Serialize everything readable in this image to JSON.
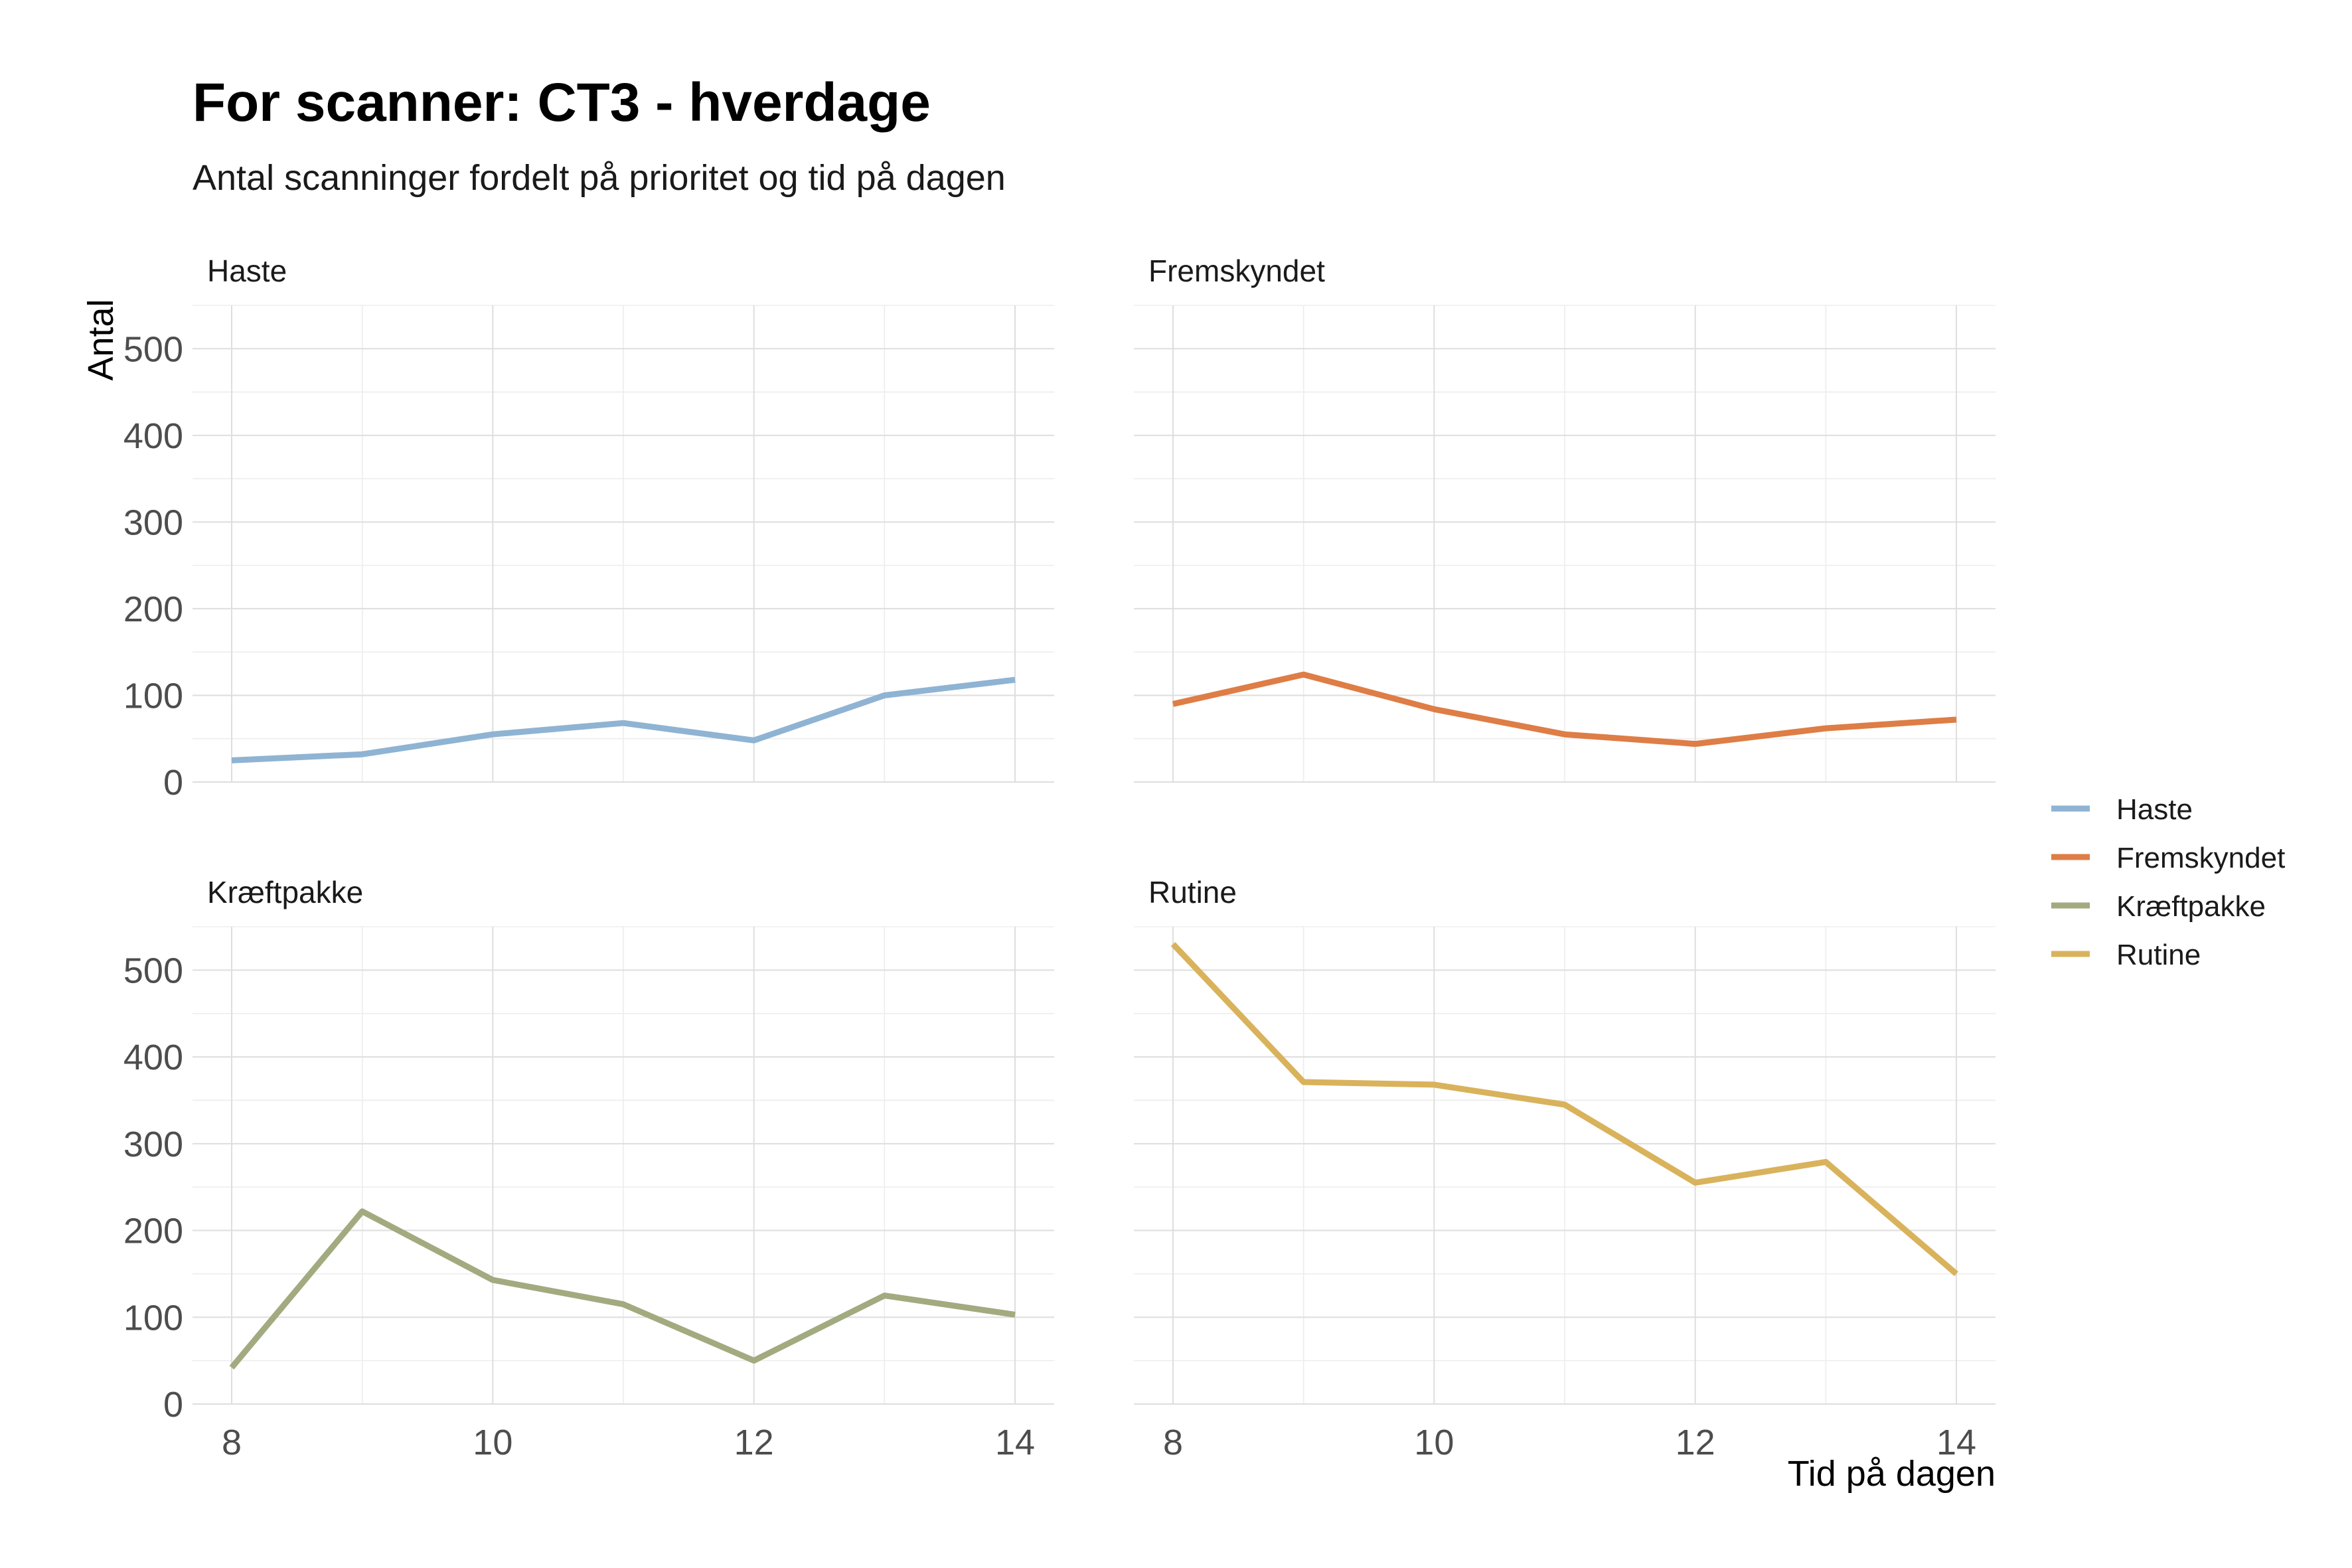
{
  "chart_data": {
    "type": "line",
    "title": "For scanner: CT3 - hverdage",
    "subtitle": "Antal scanninger fordelt på prioritet og tid på dagen",
    "xlabel": "Tid på dagen",
    "ylabel": "Antal",
    "xlim": [
      7.7,
      14.3
    ],
    "ylim": [
      0,
      550
    ],
    "x_ticks": [
      8,
      10,
      12,
      14
    ],
    "y_ticks": [
      0,
      100,
      200,
      300,
      400,
      500
    ],
    "grid": true,
    "legend_position": "right",
    "x": [
      8,
      9,
      10,
      11,
      12,
      13,
      14
    ],
    "series": [
      {
        "name": "Haste",
        "color": "#8fb3d3",
        "values": [
          25,
          32,
          55,
          68,
          48,
          100,
          118
        ]
      },
      {
        "name": "Fremskyndet",
        "color": "#de7d46",
        "values": [
          90,
          124,
          84,
          55,
          44,
          62,
          72
        ]
      },
      {
        "name": "Kræftpakke",
        "color": "#a2aa7f",
        "values": [
          42,
          222,
          143,
          115,
          50,
          125,
          103
        ]
      },
      {
        "name": "Rutine",
        "color": "#d9b25c",
        "values": [
          530,
          371,
          368,
          345,
          255,
          279,
          150
        ]
      }
    ]
  }
}
